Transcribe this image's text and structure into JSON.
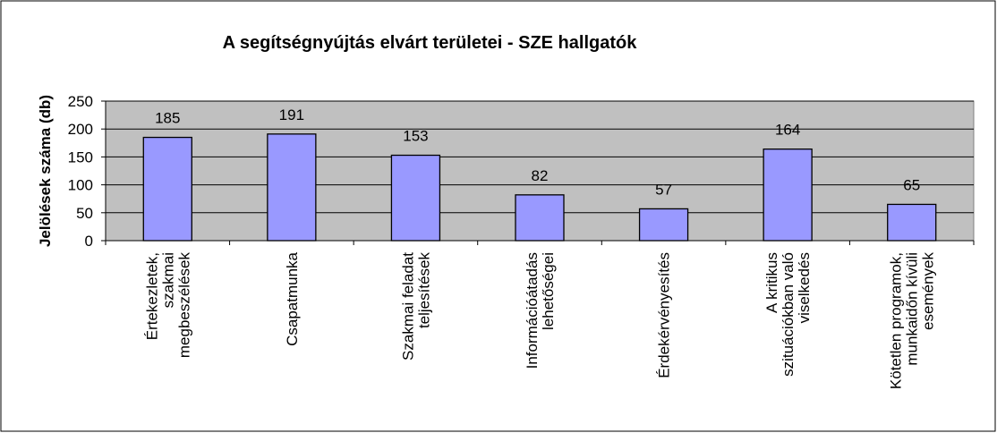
{
  "chart_data": {
    "type": "bar",
    "title": "A segítségnyújtás elvárt területei - SZE hallgatók",
    "y_label": "Jelölések száma (db)",
    "categories": [
      "Értekezletek,\nszakmai\nmegbeszélések",
      "Csapatmunka",
      "Szakmai feladat\nteljesítések",
      "Információátadás\nlehetőségei",
      "Érdekérvényesítés",
      "A kritikus\nszituációkban való\nviselkedés",
      "Kötetlen programok,\nmunkaidőn kívüli\nesemények"
    ],
    "values": [
      185,
      191,
      153,
      82,
      57,
      164,
      65
    ],
    "color": "#9999ff",
    "ylim": [
      0,
      250
    ],
    "yticks": [
      0,
      50,
      100,
      150,
      200,
      250
    ],
    "grid": true
  }
}
